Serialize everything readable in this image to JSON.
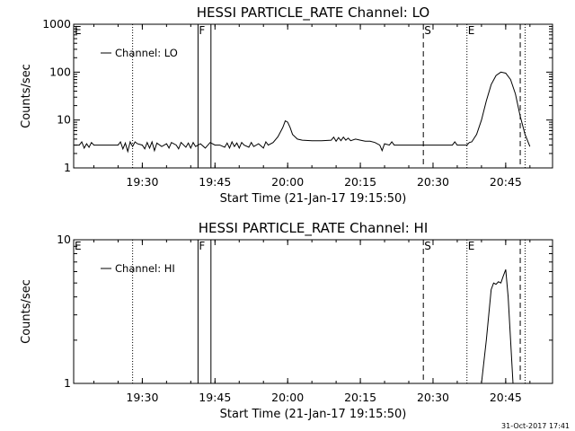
{
  "footer": {
    "date": "31-Oct-2017 17:41"
  },
  "colors": {
    "background": "#ffffff",
    "foreground": "#000000"
  },
  "chart_data": [
    {
      "type": "line",
      "title": "HESSI PARTICLE_RATE Channel: LO",
      "xlabel": "Start Time (21-Jan-17 19:15:50)",
      "ylabel": "Counts/sec",
      "yscale": "log",
      "ylim": [
        1,
        1000
      ],
      "xlim": [
        "19:15:50",
        "20:54:40"
      ],
      "x_ticks": [
        "19:30",
        "19:45",
        "20:00",
        "20:15",
        "20:30",
        "20:45"
      ],
      "y_ticks": [
        "1",
        "10",
        "100",
        "1000"
      ],
      "legend": {
        "entries": [
          "Channel: LO"
        ],
        "placement": "top-left"
      },
      "grid": false,
      "markers": [
        {
          "time": "19:28:00",
          "style": "dotted",
          "label": ""
        },
        {
          "time": "19:41:30",
          "style": "solid",
          "label": "F"
        },
        {
          "time": "19:44:10",
          "style": "solid",
          "label": ""
        },
        {
          "time": "20:28:00",
          "style": "dashed",
          "label": "S"
        },
        {
          "time": "20:37:00",
          "style": "dotted",
          "label": "E"
        },
        {
          "time": "20:48:00",
          "style": "dashed",
          "label": ""
        },
        {
          "time": "20:49:00",
          "style": "dotted",
          "label": ""
        }
      ],
      "corner_flag": "E",
      "series": [
        {
          "name": "Channel: LO",
          "points": [
            [
              "19:16:00",
              3.0
            ],
            [
              "19:17:00",
              3.0
            ],
            [
              "19:17:30",
              3.5
            ],
            [
              "19:18:00",
              2.6
            ],
            [
              "19:18:30",
              3.2
            ],
            [
              "19:19:00",
              2.7
            ],
            [
              "19:19:30",
              3.4
            ],
            [
              "19:20:00",
              3.0
            ],
            [
              "19:21:00",
              3.0
            ],
            [
              "19:22:00",
              3.0
            ],
            [
              "19:23:00",
              3.0
            ],
            [
              "19:24:00",
              3.0
            ],
            [
              "19:25:00",
              3.0
            ],
            [
              "19:25:30",
              3.5
            ],
            [
              "19:26:00",
              2.5
            ],
            [
              "19:26:30",
              3.3
            ],
            [
              "19:27:00",
              2.2
            ],
            [
              "19:27:30",
              3.5
            ],
            [
              "19:28:00",
              2.8
            ],
            [
              "19:28:30",
              3.5
            ],
            [
              "19:29:00",
              3.2
            ],
            [
              "19:30:00",
              3.0
            ],
            [
              "19:30:30",
              2.5
            ],
            [
              "19:31:00",
              3.4
            ],
            [
              "19:31:30",
              2.6
            ],
            [
              "19:32:00",
              3.5
            ],
            [
              "19:32:30",
              2.3
            ],
            [
              "19:33:00",
              3.3
            ],
            [
              "19:34:00",
              2.8
            ],
            [
              "19:35:00",
              3.2
            ],
            [
              "19:35:30",
              2.6
            ],
            [
              "19:36:00",
              3.4
            ],
            [
              "19:37:00",
              3.0
            ],
            [
              "19:37:30",
              2.5
            ],
            [
              "19:38:00",
              3.4
            ],
            [
              "19:39:00",
              2.7
            ],
            [
              "19:39:30",
              3.3
            ],
            [
              "19:40:00",
              2.6
            ],
            [
              "19:40:30",
              3.4
            ],
            [
              "19:41:00",
              2.8
            ],
            [
              "19:42:00",
              3.2
            ],
            [
              "19:43:00",
              2.6
            ],
            [
              "19:44:00",
              3.4
            ],
            [
              "19:45:00",
              3.0
            ],
            [
              "19:46:00",
              3.0
            ],
            [
              "19:47:00",
              2.7
            ],
            [
              "19:47:30",
              3.3
            ],
            [
              "19:48:00",
              2.6
            ],
            [
              "19:48:30",
              3.5
            ],
            [
              "19:49:00",
              2.8
            ],
            [
              "19:49:30",
              3.3
            ],
            [
              "19:50:00",
              2.6
            ],
            [
              "19:50:30",
              3.4
            ],
            [
              "19:51:00",
              3.0
            ],
            [
              "19:52:00",
              2.7
            ],
            [
              "19:52:30",
              3.4
            ],
            [
              "19:53:00",
              2.8
            ],
            [
              "19:54:00",
              3.2
            ],
            [
              "19:55:00",
              2.6
            ],
            [
              "19:55:30",
              3.5
            ],
            [
              "19:56:00",
              3.0
            ],
            [
              "19:57:00",
              3.4
            ],
            [
              "19:58:00",
              4.5
            ],
            [
              "19:59:00",
              7.0
            ],
            [
              "19:59:30",
              9.6
            ],
            [
              "20:00:00",
              9.0
            ],
            [
              "20:00:30",
              7.0
            ],
            [
              "20:01:00",
              5.0
            ],
            [
              "20:02:00",
              4.0
            ],
            [
              "20:03:00",
              3.8
            ],
            [
              "20:05:00",
              3.7
            ],
            [
              "20:07:00",
              3.7
            ],
            [
              "20:09:00",
              3.8
            ],
            [
              "20:09:30",
              4.4
            ],
            [
              "20:10:00",
              3.6
            ],
            [
              "20:10:30",
              4.3
            ],
            [
              "20:11:00",
              3.7
            ],
            [
              "20:11:30",
              4.4
            ],
            [
              "20:12:00",
              3.8
            ],
            [
              "20:12:30",
              4.2
            ],
            [
              "20:13:00",
              3.7
            ],
            [
              "20:14:00",
              4.0
            ],
            [
              "20:15:00",
              3.8
            ],
            [
              "20:16:00",
              3.6
            ],
            [
              "20:17:00",
              3.6
            ],
            [
              "20:18:00",
              3.4
            ],
            [
              "20:19:00",
              3.0
            ],
            [
              "20:19:30",
              2.3
            ],
            [
              "20:20:00",
              3.2
            ],
            [
              "20:21:00",
              3.0
            ],
            [
              "20:21:30",
              3.5
            ],
            [
              "20:22:00",
              3.0
            ],
            [
              "20:23:00",
              3.0
            ],
            [
              "20:24:00",
              3.0
            ],
            [
              "20:25:00",
              3.0
            ],
            [
              "20:26:00",
              3.0
            ],
            [
              "20:27:00",
              3.0
            ],
            [
              "20:28:00",
              3.0
            ],
            [
              "20:29:00",
              3.0
            ],
            [
              "20:30:00",
              3.0
            ],
            [
              "20:31:00",
              3.0
            ],
            [
              "20:32:00",
              3.0
            ],
            [
              "20:33:00",
              3.0
            ],
            [
              "20:34:00",
              3.0
            ],
            [
              "20:34:30",
              3.5
            ],
            [
              "20:35:00",
              3.0
            ],
            [
              "20:36:00",
              3.0
            ],
            [
              "20:37:00",
              3.0
            ],
            [
              "20:37:30",
              3.4
            ],
            [
              "20:38:00",
              3.5
            ],
            [
              "20:39:00",
              5.0
            ],
            [
              "20:40:00",
              10.0
            ],
            [
              "20:41:00",
              25.0
            ],
            [
              "20:42:00",
              55.0
            ],
            [
              "20:43:00",
              85.0
            ],
            [
              "20:44:00",
              100.0
            ],
            [
              "20:45:00",
              95.0
            ],
            [
              "20:46:00",
              70.0
            ],
            [
              "20:47:00",
              35.0
            ],
            [
              "20:48:00",
              12.0
            ],
            [
              "20:49:00",
              5.0
            ],
            [
              "20:50:00",
              2.8
            ]
          ]
        }
      ]
    },
    {
      "type": "line",
      "title": "HESSI PARTICLE_RATE Channel: HI",
      "xlabel": "Start Time (21-Jan-17 19:15:50)",
      "ylabel": "Counts/sec",
      "yscale": "log",
      "ylim": [
        1,
        10
      ],
      "xlim": [
        "19:15:50",
        "20:54:40"
      ],
      "x_ticks": [
        "19:30",
        "19:45",
        "20:00",
        "20:15",
        "20:30",
        "20:45"
      ],
      "y_ticks": [
        "1",
        "10"
      ],
      "legend": {
        "entries": [
          "Channel: HI"
        ],
        "placement": "top-left"
      },
      "grid": false,
      "markers": [
        {
          "time": "19:28:00",
          "style": "dotted",
          "label": ""
        },
        {
          "time": "19:41:30",
          "style": "solid",
          "label": "F"
        },
        {
          "time": "19:44:10",
          "style": "solid",
          "label": ""
        },
        {
          "time": "20:28:00",
          "style": "dashed",
          "label": "S"
        },
        {
          "time": "20:37:00",
          "style": "dotted",
          "label": "E"
        },
        {
          "time": "20:48:00",
          "style": "dashed",
          "label": ""
        },
        {
          "time": "20:49:00",
          "style": "dotted",
          "label": ""
        }
      ],
      "corner_flag": "E",
      "series": [
        {
          "name": "Channel: HI",
          "points": [
            [
              "20:40:00",
              0.9
            ],
            [
              "20:41:00",
              2.0
            ],
            [
              "20:42:00",
              4.5
            ],
            [
              "20:42:30",
              5.0
            ],
            [
              "20:43:00",
              4.9
            ],
            [
              "20:43:30",
              5.1
            ],
            [
              "20:44:00",
              5.0
            ],
            [
              "20:44:30",
              5.6
            ],
            [
              "20:45:00",
              6.2
            ],
            [
              "20:45:30",
              4.0
            ],
            [
              "20:46:00",
              2.0
            ],
            [
              "20:46:30",
              1.0
            ],
            [
              "20:47:00",
              0.9
            ]
          ]
        }
      ]
    }
  ]
}
